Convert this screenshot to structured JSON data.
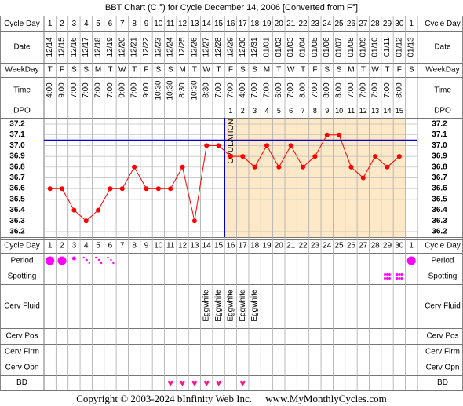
{
  "title": "BBT Chart (C °) for Cycle December 14, 2006  [Converted from F°]",
  "row_labels": {
    "cycle_day": "Cycle Day",
    "date": "Date",
    "weekday": "WeekDay",
    "time": "Time",
    "dpo": "DPO",
    "period": "Period",
    "spotting": "Spotting",
    "cerv_fluid": "Cerv Fluid",
    "cerv_pos": "Cerv Pos",
    "cerv_firm": "Cerv Firm",
    "cerv_opn": "Cerv Opn",
    "bd": "BD"
  },
  "cycle_days": [
    "1",
    "2",
    "3",
    "4",
    "5",
    "6",
    "7",
    "8",
    "9",
    "10",
    "11",
    "12",
    "13",
    "14",
    "15",
    "16",
    "17",
    "18",
    "19",
    "20",
    "21",
    "22",
    "23",
    "24",
    "25",
    "26",
    "27",
    "28",
    "29",
    "30",
    "1"
  ],
  "dates": [
    "12/14",
    "12/15",
    "12/16",
    "12/17",
    "12/18",
    "12/19",
    "12/20",
    "12/21",
    "12/22",
    "12/23",
    "12/24",
    "12/25",
    "12/26",
    "12/27",
    "12/28",
    "12/29",
    "12/30",
    "12/31",
    "01/01",
    "01/02",
    "01/03",
    "01/04",
    "01/05",
    "01/06",
    "01/07",
    "01/08",
    "01/09",
    "01/10",
    "01/11",
    "01/12",
    "01/13"
  ],
  "weekdays": [
    "T",
    "F",
    "S",
    "S",
    "M",
    "T",
    "W",
    "T",
    "F",
    "S",
    "S",
    "M",
    "T",
    "W",
    "T",
    "F",
    "S",
    "S",
    "M",
    "T",
    "W",
    "T",
    "F",
    "S",
    "S",
    "M",
    "T",
    "W",
    "T",
    "F",
    "S"
  ],
  "times": [
    "4:00",
    "9:00",
    "7:00",
    "7:00",
    "7:00",
    "7:00",
    "9:00",
    "7:00",
    "9:00",
    "10:30",
    "10:30",
    "8:30",
    "10:30",
    "8:30",
    "7:00",
    "7:00",
    "4:00",
    "7:00",
    "7:00",
    "6:00",
    "7:00",
    "8:00",
    "7:00",
    "8:00",
    "8:00",
    "7:00",
    "7:00",
    "7:00",
    "7:00",
    "8:00",
    ""
  ],
  "dpo": [
    "",
    "",
    "",
    "",
    "",
    "",
    "",
    "",
    "",
    "",
    "",
    "",
    "",
    "",
    "",
    "1",
    "2",
    "3",
    "4",
    "5",
    "6",
    "7",
    "8",
    "9",
    "10",
    "11",
    "12",
    "13",
    "14",
    "15",
    ""
  ],
  "ovulation_label": "OVULATION",
  "period_flow": [
    "heavy",
    "heavy",
    "light",
    "spotty",
    "spotty",
    "spotty",
    "",
    "",
    "",
    "",
    "",
    "",
    "",
    "",
    "",
    "",
    "",
    "",
    "",
    "",
    "",
    "",
    "",
    "",
    "",
    "",
    "",
    "",
    "",
    "",
    "heavy"
  ],
  "spotting_marks": [
    29,
    30
  ],
  "cerv_fluid": [
    "",
    "",
    "",
    "",
    "",
    "",
    "",
    "",
    "",
    "",
    "",
    "",
    "",
    "Eggwhite",
    "Eggwhite",
    "Eggwhite",
    "Eggwhite",
    "Eggwhite",
    "",
    "",
    "",
    "",
    "",
    "",
    "",
    "",
    "",
    "",
    "",
    "",
    ""
  ],
  "bd_marks": [
    11,
    12,
    13,
    14,
    15,
    17
  ],
  "chart_data": {
    "type": "line",
    "title": "BBT Chart (C °) for Cycle December 14, 2006  [Converted from F°]",
    "x": [
      1,
      2,
      3,
      4,
      5,
      6,
      7,
      8,
      9,
      10,
      11,
      12,
      13,
      14,
      15,
      16,
      17,
      18,
      19,
      20,
      21,
      22,
      23,
      24,
      25,
      26,
      27,
      28,
      29,
      30
    ],
    "series": [
      {
        "values": [
          36.6,
          36.6,
          36.4,
          36.3,
          36.4,
          36.6,
          36.6,
          36.8,
          36.6,
          36.6,
          36.6,
          36.8,
          36.3,
          37.0,
          37.0,
          36.9,
          36.9,
          36.8,
          37.0,
          36.8,
          37.0,
          36.8,
          36.9,
          37.1,
          37.1,
          36.8,
          36.7,
          36.9,
          36.8,
          36.9
        ]
      }
    ],
    "y_ticks": [
      "37.2",
      "37.1",
      "37.0",
      "36.9",
      "36.8",
      "36.7",
      "36.6",
      "36.5",
      "36.4",
      "36.3",
      "36.2"
    ],
    "ylim": [
      36.2,
      37.2
    ],
    "coverline": 37.05,
    "ovulation_day": 15,
    "grid": true,
    "colors": {
      "line": "#ff0000",
      "coverline": "#0000cc",
      "ovulation": "#0000cc",
      "luteal": "#fde9c7",
      "period": "#ff00ff",
      "bd": "#ff1493"
    }
  }
}
